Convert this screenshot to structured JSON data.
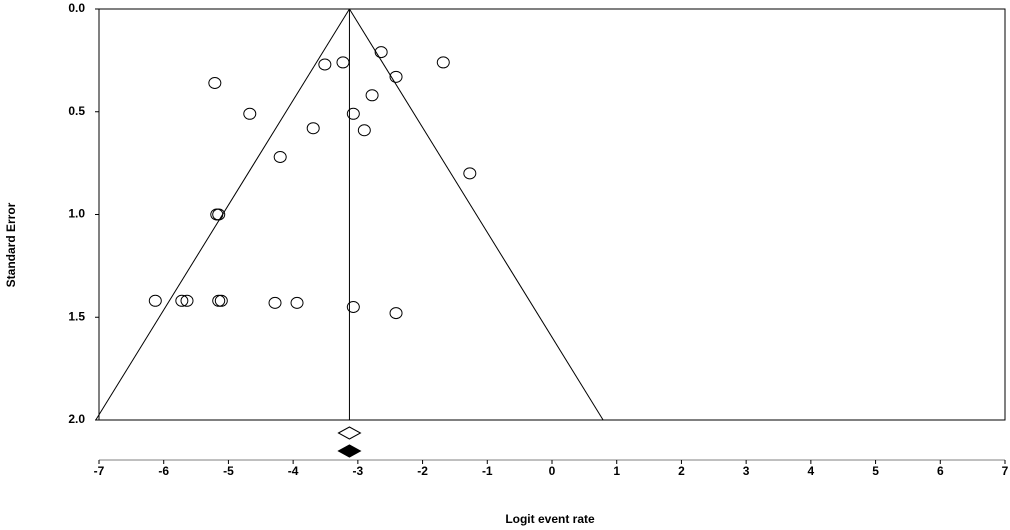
{
  "chart_data": {
    "type": "funnel",
    "x_label": "Logit event rate",
    "y_label": "Standard Error",
    "xlim": [
      -7,
      7
    ],
    "xticks": [
      -7,
      -6,
      -5,
      -4,
      -3,
      -2,
      -1,
      0,
      1,
      2,
      3,
      4,
      5,
      6,
      7
    ],
    "ylim": [
      0,
      2
    ],
    "y_inverted": true,
    "yticks": [
      {
        "value": 0,
        "label": "0.0"
      },
      0.5,
      {
        "value": 1,
        "label": "1.0"
      },
      1.5,
      {
        "value": 2,
        "label": "2.0"
      }
    ],
    "funnel": {
      "center": -3.13,
      "lower": -7.05,
      "upper": 0.79
    },
    "x": [
      -5.21,
      -4.67,
      -3.51,
      -3.23,
      -2.64,
      -2.41,
      -1.68,
      -2.78,
      -3.07,
      -3.69,
      -2.9,
      -4.2,
      -1.27,
      -5.18,
      -5.15,
      -6.13,
      -5.72,
      -5.64,
      -5.15,
      -5.11,
      -4.28,
      -3.94,
      -3.07,
      -2.41
    ],
    "y": [
      0.36,
      0.51,
      0.27,
      0.26,
      0.21,
      0.33,
      0.26,
      0.42,
      0.51,
      0.58,
      0.59,
      0.72,
      0.8,
      1.0,
      1.0,
      1.42,
      1.42,
      1.42,
      1.42,
      1.42,
      1.43,
      1.43,
      1.45,
      1.48
    ],
    "diamonds": [
      {
        "center": -3.13,
        "lower": -3.3,
        "upper": -2.96,
        "fill": "#ffffff"
      },
      {
        "center": -3.13,
        "lower": -3.3,
        "upper": -2.96,
        "fill": "#000000"
      }
    ]
  }
}
